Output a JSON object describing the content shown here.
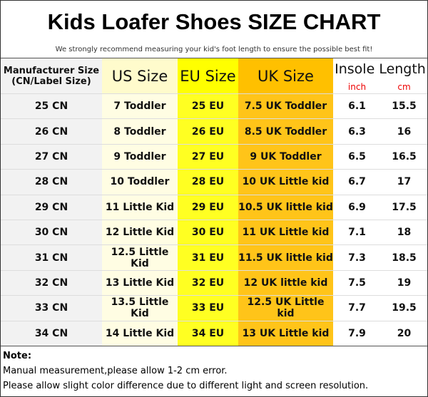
{
  "header": {
    "title": "Kids Loafer Shoes SIZE CHART",
    "subtitle": "We strongly recommend measuring your kid's foot length to ensure the possible best fit!"
  },
  "table": {
    "manufacturer_header": [
      "Manufacturer Size",
      "(CN/Label Size)"
    ],
    "us_header": "US Size",
    "eu_header": "EU Size",
    "uk_header": "UK Size",
    "insole_header": "Insole Length",
    "units": [
      "inch",
      "cm"
    ],
    "rows": [
      [
        "25 CN",
        "7 Toddler",
        "25 EU",
        "7.5 UK Toddler",
        6.1,
        15.5
      ],
      [
        "26 CN",
        "8 Toddler",
        "26 EU",
        "8.5 UK Toddler",
        6.3,
        16
      ],
      [
        "27 CN",
        "9 Toddler",
        "27 EU",
        "9 UK Toddler",
        6.5,
        16.5
      ],
      [
        "28 CN",
        "10 Toddler",
        "28 EU",
        "10 UK Little kid",
        6.7,
        17
      ],
      [
        "29 CN",
        "11 Little Kid",
        "29 EU",
        "10.5 UK little kid",
        6.9,
        17.5
      ],
      [
        "30 CN",
        "12 Little Kid",
        "30 EU",
        "11 UK Little kid",
        7.1,
        18
      ],
      [
        "31 CN",
        "12.5 Little Kid",
        "31 EU",
        "11.5 UK little kid",
        7.3,
        18.5
      ],
      [
        "32 CN",
        "13 Little Kid",
        "32 EU",
        "12 UK little kid",
        7.5,
        19
      ],
      [
        "33 CN",
        "13.5 Little Kid",
        "33 EU",
        "12.5 UK Little kid",
        7.7,
        19.5
      ],
      [
        "34 CN",
        "14 Little Kid",
        "34 EU",
        "13 UK Little kid",
        7.9,
        20
      ]
    ]
  },
  "notes": {
    "label": "Note:",
    "lines": [
      "Manual measurement,please allow 1-2 cm error.",
      "Please allow slight color difference due to different light and screen resolution."
    ]
  }
}
